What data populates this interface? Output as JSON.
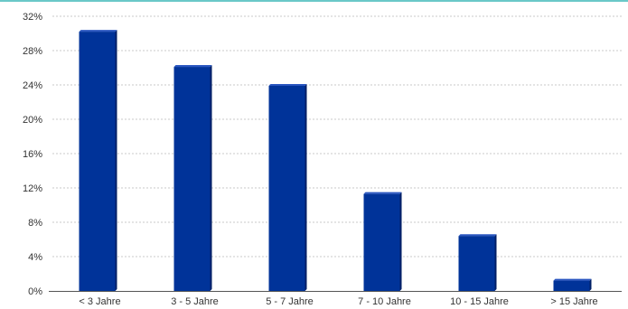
{
  "chart_data": {
    "type": "bar",
    "title": "",
    "xlabel": "",
    "ylabel": "",
    "categories": [
      "< 3 Jahre",
      "3 - 5 Jahre",
      "5 - 7 Jahre",
      "7 - 10 Jahre",
      "10 - 15 Jahre",
      "> 15 Jahre"
    ],
    "values": [
      30.2,
      26.1,
      23.9,
      11.3,
      6.4,
      1.2
    ],
    "ylim": [
      0,
      32
    ],
    "yticks": [
      0,
      4,
      8,
      12,
      16,
      20,
      24,
      28,
      32
    ],
    "ytick_labels": [
      "0%",
      "4%",
      "8%",
      "12%",
      "16%",
      "20%",
      "24%",
      "28%",
      "32%"
    ],
    "grid": true,
    "legend": "none",
    "colors": {
      "bar": "#003399",
      "bar_side": "#001f66",
      "bar_top": "#2a56c0",
      "grid": "#b8b8b8",
      "axis": "#555555",
      "top_rule": "#39b5b5"
    }
  }
}
